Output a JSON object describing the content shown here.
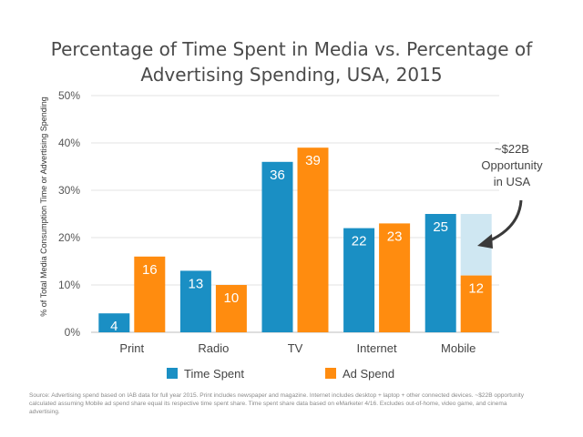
{
  "chart_data": {
    "type": "bar",
    "title": "Percentage of Time Spent in Media vs. Percentage of Advertising Spending, USA, 2015",
    "ylabel": "% of Total Media Consumption Time or Advertising Spending",
    "xlabel": "",
    "categories": [
      "Print",
      "Radio",
      "TV",
      "Internet",
      "Mobile"
    ],
    "series": [
      {
        "name": "Time Spent",
        "color": "#1a8fc4",
        "values": [
          4,
          13,
          36,
          22,
          25
        ]
      },
      {
        "name": "Ad Spend",
        "color": "#ff8c0f",
        "values": [
          16,
          10,
          39,
          23,
          12
        ]
      }
    ],
    "ylim": [
      0,
      50
    ],
    "yticks": [
      "0%",
      "10%",
      "20%",
      "30%",
      "40%",
      "50%"
    ],
    "grid": true,
    "legend": "bottom",
    "opportunity": {
      "category": "Mobile",
      "from": 12,
      "to": 25,
      "color": "#cfe7f2",
      "label_lines": [
        "~$22B",
        "Opportunity",
        "in USA"
      ]
    }
  },
  "source_note": "Source: Advertising spend based on IAB data for full year 2015. Print includes newspaper and magazine. Internet includes desktop + laptop + other connected devices. ~$22B opportunity calculated assuming Mobile ad spend share equal its respective time spent share. Time spent share data based on eMarketer 4/16. Excludes out-of-home, video game, and cinema advertising."
}
